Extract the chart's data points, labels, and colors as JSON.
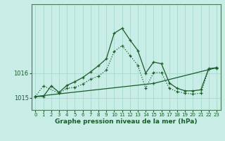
{
  "xlabel": "Graphe pression niveau de la mer (hPa)",
  "background_color": "#c8ece6",
  "grid_color": "#a8d8cc",
  "line_color": "#1a5c2a",
  "x_ticks": [
    0,
    1,
    2,
    3,
    4,
    5,
    6,
    7,
    8,
    9,
    10,
    11,
    12,
    13,
    14,
    15,
    16,
    17,
    18,
    19,
    20,
    21,
    22,
    23
  ],
  "ylim": [
    1014.5,
    1018.8
  ],
  "y_ticks": [
    1015,
    1016
  ],
  "curve1_x": [
    0,
    1,
    2,
    3,
    4,
    5,
    6,
    7,
    8,
    9,
    10,
    11,
    12,
    13,
    14,
    15,
    16,
    17,
    18,
    19,
    20,
    21,
    22,
    23
  ],
  "curve1_y": [
    1015.05,
    1015.05,
    1015.48,
    1015.22,
    1015.5,
    1015.65,
    1015.82,
    1016.05,
    1016.3,
    1016.58,
    1017.62,
    1017.82,
    1017.35,
    1016.92,
    1016.0,
    1016.45,
    1016.38,
    1015.6,
    1015.38,
    1015.28,
    1015.28,
    1015.32,
    1016.18,
    1016.22
  ],
  "curve2_x": [
    0,
    1,
    3,
    4,
    5,
    6,
    7,
    8,
    9,
    10,
    11,
    12,
    13,
    14,
    15,
    16,
    17,
    18,
    19,
    20,
    21,
    22,
    23
  ],
  "curve2_y": [
    1015.05,
    1015.48,
    1015.18,
    1015.38,
    1015.42,
    1015.55,
    1015.75,
    1015.88,
    1016.12,
    1016.88,
    1017.12,
    1016.72,
    1016.32,
    1015.38,
    1016.02,
    1016.02,
    1015.38,
    1015.25,
    1015.18,
    1015.15,
    1015.18,
    1016.15,
    1016.2
  ],
  "curve3_x": [
    0,
    15,
    23
  ],
  "curve3_y": [
    1015.05,
    1015.58,
    1016.22
  ]
}
